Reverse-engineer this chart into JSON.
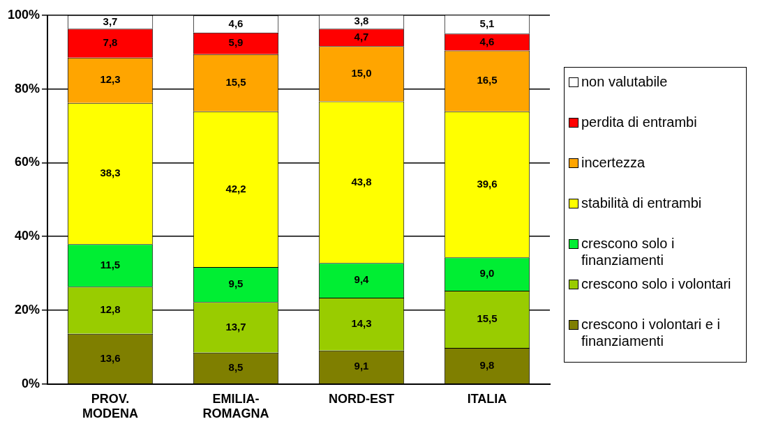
{
  "chart_data": {
    "type": "bar",
    "stacked": true,
    "categories": [
      "PROV. MODENA",
      "EMILIA-ROMAGNA",
      "NORD-EST",
      "ITALIA"
    ],
    "series": [
      {
        "name": "crescono i volontari e i finanziamenti",
        "color": "#7f7f00",
        "values": [
          13.6,
          8.5,
          9.1,
          9.8
        ],
        "value_labels": [
          "13,6",
          "8,5",
          "9,1",
          "9,8"
        ]
      },
      {
        "name": "crescono solo i volontari",
        "color": "#99cc00",
        "values": [
          12.8,
          13.7,
          14.3,
          15.5
        ],
        "value_labels": [
          "12,8",
          "13,7",
          "14,3",
          "15,5"
        ]
      },
      {
        "name": "crescono solo i finanziamenti",
        "color": "#00ee33",
        "values": [
          11.5,
          9.5,
          9.4,
          9.0
        ],
        "value_labels": [
          "11,5",
          "9,5",
          "9,4",
          "9,0"
        ]
      },
      {
        "name": "stabilità di entrambi",
        "color": "#ffff00",
        "values": [
          38.3,
          42.2,
          43.8,
          39.6
        ],
        "value_labels": [
          "38,3",
          "42,2",
          "43,8",
          "39,6"
        ]
      },
      {
        "name": "incertezza",
        "color": "#ffa500",
        "values": [
          12.3,
          15.5,
          15.0,
          16.5
        ],
        "value_labels": [
          "12,3",
          "15,5",
          "15,0",
          "16,5"
        ]
      },
      {
        "name": "perdita di entrambi",
        "color": "#ff0000",
        "values": [
          7.8,
          5.9,
          4.7,
          4.6
        ],
        "value_labels": [
          "7,8",
          "5,9",
          "4,7",
          "4,6"
        ]
      },
      {
        "name": "non valutabile",
        "color": "#ffffff",
        "values": [
          3.7,
          4.6,
          3.8,
          5.1
        ],
        "value_labels": [
          "3,7",
          "4,6",
          "3,8",
          "5,1"
        ]
      }
    ],
    "ylim": [
      0,
      100
    ],
    "yticks": [
      {
        "value": 0,
        "label": "0%"
      },
      {
        "value": 20,
        "label": "20%"
      },
      {
        "value": 40,
        "label": "40%"
      },
      {
        "value": 60,
        "label": "60%"
      },
      {
        "value": 80,
        "label": "80%"
      },
      {
        "value": 100,
        "label": "100%"
      }
    ],
    "grid": "y",
    "legend": "right"
  }
}
